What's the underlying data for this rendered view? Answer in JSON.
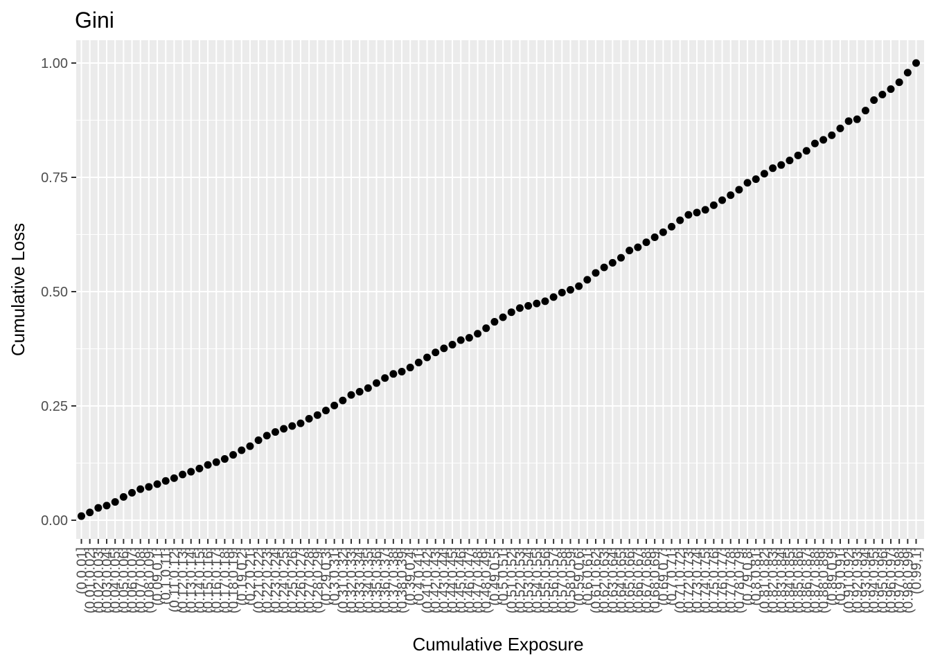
{
  "colors": {
    "panel_background": "#ebebeb",
    "grid_line": "#ffffff",
    "point": "#000000",
    "tick_text": "#4d4d4d",
    "tick_mark": "#333333"
  },
  "chart_data": {
    "type": "scatter",
    "title": "Gini",
    "xlabel": "Cumulative Exposure",
    "ylabel": "Cumulative Loss",
    "ylim": [
      -0.04,
      1.05
    ],
    "y_ticks": [
      0.0,
      0.25,
      0.5,
      0.75,
      1.0
    ],
    "y_tick_labels": [
      "0.00",
      "0.25",
      "0.50",
      "0.75",
      "1.00"
    ],
    "grid": true,
    "legend": "none",
    "categories": [
      "(0,0.01]",
      "(0.01,0.02]",
      "(0.02,0.03]",
      "(0.03,0.04]",
      "(0.04,0.05]",
      "(0.05,0.06]",
      "(0.06,0.07]",
      "(0.07,0.08]",
      "(0.08,0.09]",
      "(0.09,0.1]",
      "(0.1,0.11]",
      "(0.11,0.12]",
      "(0.12,0.13]",
      "(0.13,0.14]",
      "(0.14,0.15]",
      "(0.15,0.16]",
      "(0.16,0.17]",
      "(0.17,0.18]",
      "(0.18,0.19]",
      "(0.19,0.2]",
      "(0.2,0.21]",
      "(0.21,0.22]",
      "(0.22,0.23]",
      "(0.23,0.24]",
      "(0.24,0.25]",
      "(0.25,0.26]",
      "(0.26,0.27]",
      "(0.27,0.28]",
      "(0.28,0.29]",
      "(0.29,0.3]",
      "(0.3,0.31]",
      "(0.31,0.32]",
      "(0.32,0.33]",
      "(0.33,0.34]",
      "(0.34,0.35]",
      "(0.35,0.36]",
      "(0.36,0.37]",
      "(0.37,0.38]",
      "(0.38,0.39]",
      "(0.39,0.4]",
      "(0.4,0.41]",
      "(0.41,0.42]",
      "(0.42,0.43]",
      "(0.43,0.44]",
      "(0.44,0.45]",
      "(0.45,0.46]",
      "(0.46,0.47]",
      "(0.47,0.48]",
      "(0.48,0.49]",
      "(0.49,0.5]",
      "(0.5,0.51]",
      "(0.51,0.52]",
      "(0.52,0.53]",
      "(0.53,0.54]",
      "(0.54,0.55]",
      "(0.55,0.56]",
      "(0.56,0.57]",
      "(0.57,0.58]",
      "(0.58,0.59]",
      "(0.59,0.6]",
      "(0.6,0.61]",
      "(0.61,0.62]",
      "(0.62,0.63]",
      "(0.63,0.64]",
      "(0.64,0.65]",
      "(0.65,0.66]",
      "(0.66,0.67]",
      "(0.67,0.68]",
      "(0.68,0.69]",
      "(0.69,0.7]",
      "(0.7,0.71]",
      "(0.71,0.72]",
      "(0.72,0.73]",
      "(0.73,0.74]",
      "(0.74,0.75]",
      "(0.75,0.76]",
      "(0.76,0.77]",
      "(0.77,0.78]",
      "(0.78,0.79]",
      "(0.79,0.8]",
      "(0.8,0.81]",
      "(0.81,0.82]",
      "(0.82,0.83]",
      "(0.83,0.84]",
      "(0.84,0.85]",
      "(0.85,0.86]",
      "(0.86,0.87]",
      "(0.87,0.88]",
      "(0.88,0.89]",
      "(0.89,0.9]",
      "(0.9,0.91]",
      "(0.91,0.92]",
      "(0.92,0.93]",
      "(0.93,0.94]",
      "(0.94,0.95]",
      "(0.95,0.96]",
      "(0.96,0.97]",
      "(0.97,0.98]",
      "(0.98,0.99]",
      "(0.99,1]"
    ],
    "values": [
      0.009,
      0.017,
      0.027,
      0.032,
      0.04,
      0.051,
      0.06,
      0.068,
      0.073,
      0.079,
      0.086,
      0.092,
      0.1,
      0.106,
      0.113,
      0.121,
      0.127,
      0.134,
      0.143,
      0.153,
      0.162,
      0.175,
      0.185,
      0.193,
      0.2,
      0.206,
      0.212,
      0.222,
      0.23,
      0.24,
      0.251,
      0.262,
      0.274,
      0.281,
      0.289,
      0.3,
      0.311,
      0.32,
      0.325,
      0.334,
      0.345,
      0.356,
      0.367,
      0.376,
      0.384,
      0.394,
      0.399,
      0.408,
      0.42,
      0.434,
      0.444,
      0.455,
      0.464,
      0.469,
      0.474,
      0.479,
      0.488,
      0.498,
      0.504,
      0.512,
      0.526,
      0.541,
      0.553,
      0.563,
      0.574,
      0.59,
      0.597,
      0.608,
      0.619,
      0.63,
      0.642,
      0.656,
      0.668,
      0.673,
      0.679,
      0.689,
      0.7,
      0.711,
      0.723,
      0.738,
      0.746,
      0.758,
      0.77,
      0.777,
      0.787,
      0.798,
      0.808,
      0.824,
      0.832,
      0.842,
      0.857,
      0.873,
      0.877,
      0.896,
      0.919,
      0.931,
      0.943,
      0.958,
      0.979,
      1.0
    ]
  }
}
